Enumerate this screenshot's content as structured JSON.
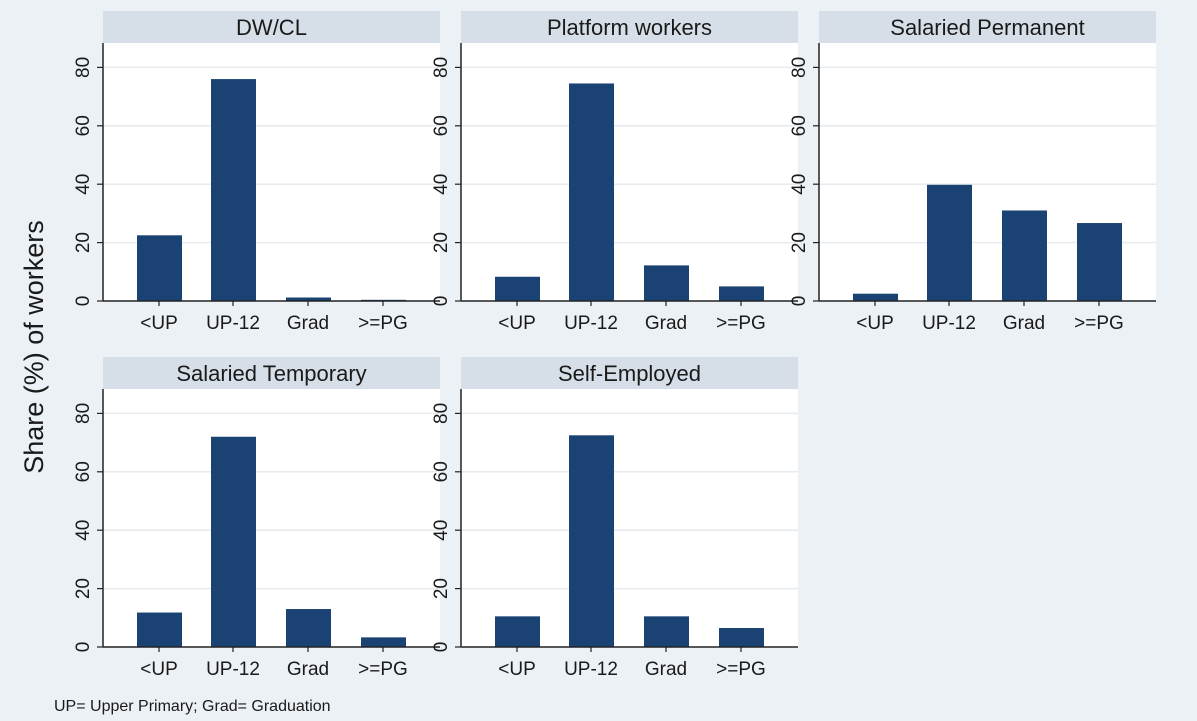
{
  "chart_data": {
    "type": "bar",
    "ylabel": "Share (%) of workers",
    "ylim": [
      0,
      88
    ],
    "yticks": [
      0,
      20,
      40,
      60,
      80
    ],
    "grid": true,
    "categories": [
      "<UP",
      "UP-12",
      "Grad",
      ">=PG"
    ],
    "bar_color": "#1a4272",
    "panels": [
      {
        "title": "DW/CL",
        "title_color": "#1a1a1a",
        "values": [
          22.5,
          76.0,
          1.2,
          0.4
        ]
      },
      {
        "title": "Platform workers",
        "title_color": "#e8231c",
        "values": [
          8.3,
          74.5,
          12.2,
          5.0
        ]
      },
      {
        "title": "Salaried Permanent",
        "title_color": "#1a1a1a",
        "values": [
          2.5,
          39.8,
          31.0,
          26.7
        ]
      },
      {
        "title": "Salaried Temporary",
        "title_color": "#1a1a1a",
        "values": [
          11.8,
          72.0,
          13.0,
          3.3
        ]
      },
      {
        "title": "Self-Employed",
        "title_color": "#1a1a1a",
        "values": [
          10.5,
          72.5,
          10.5,
          6.5
        ]
      }
    ],
    "note": "UP= Upper Primary; Grad= Graduation"
  }
}
